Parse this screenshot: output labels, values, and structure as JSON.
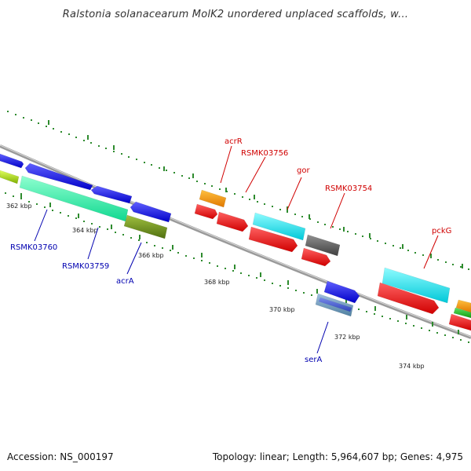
{
  "title": "Ralstonia solanacearum MolK2 unordered unplaced scaffolds, w...",
  "footer": {
    "accession": "Accession: NS_000197",
    "stats": "Topology: linear; Length: 5,964,607 bp; Genes: 4,975"
  },
  "colors": {
    "backbone": "#8a8a8a",
    "tick": "#2e8b2e",
    "forward_label": "#d00000",
    "reverse_label": "#0000b0"
  },
  "ticks": [
    "362 kbp",
    "364 kbp",
    "366 kbp",
    "368 kbp",
    "370 kbp",
    "372 kbp",
    "374 kbp"
  ],
  "labels": {
    "acrR": "acrR",
    "RSMK03756": "RSMK03756",
    "gor": "gor",
    "RSMK03754": "RSMK03754",
    "pckG": "pckG",
    "RSMK03760": "RSMK03760",
    "RSMK03759": "RSMK03759",
    "acrA": "acrA",
    "serA": "serA"
  }
}
